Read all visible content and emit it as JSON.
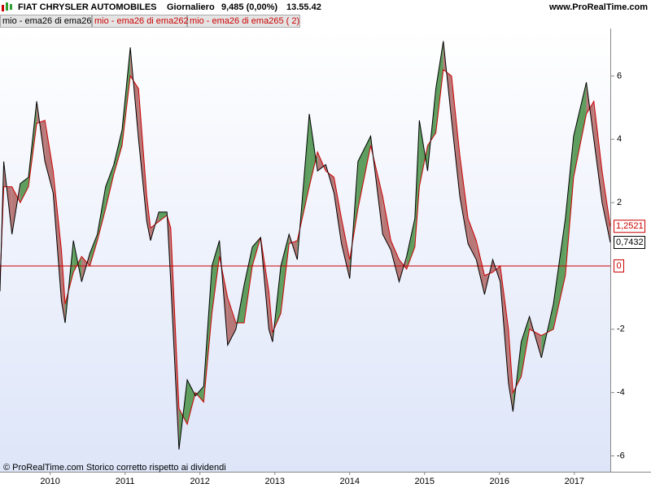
{
  "chart_data": {
    "type": "line",
    "title": "FIAT CHRYSLER AUTOMOBILES",
    "period": "Giornaliero",
    "price": "9,485 (0,00%)",
    "time": "13.55.42",
    "source": "www.ProRealTime.com",
    "footer": "© ProRealTime.com  Storico corretto rispetto ai dividendi",
    "x": [
      2009.33,
      2009.38,
      2009.49,
      2009.6,
      2009.71,
      2009.82,
      2009.93,
      2010.04,
      2010.15,
      2010.2,
      2010.31,
      2010.42,
      2010.53,
      2010.63,
      2010.74,
      2010.85,
      2010.96,
      2011.07,
      2011.18,
      2011.29,
      2011.34,
      2011.45,
      2011.56,
      2011.61,
      2011.72,
      2011.83,
      2011.94,
      2012.05,
      2012.16,
      2012.26,
      2012.37,
      2012.48,
      2012.59,
      2012.7,
      2012.81,
      2012.92,
      2012.97,
      2013.08,
      2013.19,
      2013.3,
      2013.46,
      2013.57,
      2013.68,
      2013.79,
      2013.89,
      2014.0,
      2014.11,
      2014.28,
      2014.44,
      2014.55,
      2014.66,
      2014.76,
      2014.87,
      2014.93,
      2015.04,
      2015.15,
      2015.25,
      2015.36,
      2015.47,
      2015.58,
      2015.69,
      2015.8,
      2015.91,
      2016.01,
      2016.12,
      2016.18,
      2016.29,
      2016.4,
      2016.56,
      2016.72,
      2016.88,
      2016.99,
      2017.16,
      2017.26,
      2017.37,
      2017.48
    ],
    "series": [
      {
        "name": "mio - ema26 di ema26",
        "color": "#000000",
        "last_value_label": "0,7432",
        "values": [
          -0.8,
          3.3,
          1.0,
          2.6,
          2.8,
          5.2,
          3.3,
          2.3,
          -1.1,
          -1.8,
          0.8,
          -0.5,
          0.4,
          1.0,
          2.5,
          3.2,
          4.3,
          6.9,
          4.0,
          1.4,
          0.8,
          1.7,
          1.7,
          -0.5,
          -5.8,
          -3.6,
          -4.1,
          -3.8,
          0.0,
          0.8,
          -2.5,
          -2.0,
          -0.6,
          0.6,
          0.9,
          -2.0,
          -2.4,
          0.0,
          1.0,
          0.2,
          4.8,
          3.0,
          3.2,
          2.3,
          0.7,
          -0.4,
          3.3,
          4.1,
          1.0,
          0.5,
          -0.5,
          0.3,
          1.5,
          4.6,
          3.0,
          5.6,
          7.1,
          4.6,
          2.2,
          0.7,
          0.2,
          -0.9,
          0.2,
          -0.5,
          -3.7,
          -4.6,
          -2.4,
          -1.6,
          -2.9,
          -1.2,
          1.5,
          4.1,
          5.8,
          4.0,
          2.0,
          0.7432
        ]
      },
      {
        "name": "mio - ema26 di ema262",
        "color": "#cc0000",
        "last_value_label": "1,2521",
        "values": [
          -0.5,
          2.5,
          2.5,
          2.0,
          2.5,
          4.5,
          4.6,
          3.0,
          0.5,
          -1.2,
          -0.2,
          0.3,
          0.0,
          0.8,
          1.8,
          2.9,
          3.8,
          6.0,
          5.6,
          2.2,
          1.2,
          1.4,
          1.6,
          1.2,
          -4.5,
          -5.0,
          -4.0,
          -4.3,
          -1.5,
          0.3,
          -1.0,
          -1.8,
          -1.8,
          0.0,
          0.9,
          -0.8,
          -2.1,
          -1.5,
          0.7,
          0.8,
          2.5,
          3.6,
          3.0,
          2.8,
          1.5,
          0.2,
          1.8,
          3.8,
          2.2,
          0.8,
          0.2,
          -0.1,
          0.6,
          2.5,
          3.8,
          4.2,
          6.2,
          6.0,
          3.5,
          1.5,
          0.8,
          -0.3,
          -0.2,
          0.0,
          -2.0,
          -4.0,
          -3.5,
          -2.0,
          -2.2,
          -2.0,
          -0.3,
          2.8,
          4.8,
          5.2,
          3.0,
          1.2521
        ]
      }
    ],
    "hline": {
      "name": "mio - ema26 di ema265 ( 2)",
      "value": 0,
      "color": "#cc0000"
    },
    "fill": {
      "above": "#5f9e5f",
      "below": "#b87878"
    },
    "xlim": [
      2009.33,
      2017.48
    ],
    "xticks": [
      2010,
      2011,
      2012,
      2013,
      2014,
      2015,
      2016,
      2017
    ],
    "ylim": [
      -6.5,
      7.5
    ],
    "yticks": [
      -6,
      -4,
      -2,
      2,
      4,
      6
    ]
  }
}
